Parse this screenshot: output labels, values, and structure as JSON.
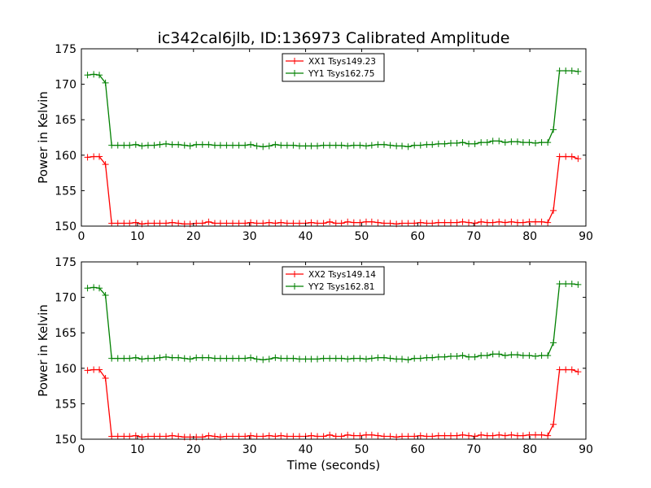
{
  "figure": {
    "title": "ic342cal6jlb, ID:136973 Calibrated Amplitude",
    "xlabel": "Time (seconds)"
  },
  "chart_data": [
    {
      "type": "line",
      "ylabel": "Power in Kelvin",
      "xlim": [
        0,
        90
      ],
      "ylim": [
        150,
        175
      ],
      "xticks": [
        0,
        10,
        20,
        30,
        40,
        50,
        60,
        70,
        80,
        90
      ],
      "yticks": [
        150,
        155,
        160,
        165,
        170,
        175
      ],
      "grid": false,
      "legend": "top-center",
      "series": [
        {
          "name": "XX1 Tsys149.23",
          "color": "#ff0000",
          "x": [
            1.1,
            2.2,
            3.2,
            4.3,
            5.4,
            6.5,
            7.6,
            8.6,
            9.7,
            10.8,
            11.9,
            13.0,
            14.0,
            15.1,
            16.2,
            17.3,
            18.4,
            19.4,
            20.5,
            21.6,
            22.7,
            23.8,
            24.8,
            25.9,
            27.0,
            28.1,
            29.2,
            30.2,
            31.3,
            32.4,
            33.5,
            34.6,
            35.6,
            36.7,
            37.8,
            38.9,
            40.0,
            41.0,
            42.1,
            43.2,
            44.3,
            45.4,
            46.4,
            47.5,
            48.6,
            49.7,
            50.8,
            51.8,
            52.9,
            54.0,
            55.1,
            56.2,
            57.2,
            58.3,
            59.4,
            60.5,
            61.6,
            62.6,
            63.7,
            64.8,
            65.9,
            67.0,
            68.0,
            69.1,
            70.2,
            71.3,
            72.4,
            73.4,
            74.5,
            75.6,
            76.7,
            77.8,
            78.8,
            79.9,
            81.0,
            82.1,
            83.2,
            84.2,
            85.3,
            86.4,
            87.5,
            88.6
          ],
          "y": [
            159.7,
            159.8,
            159.8,
            158.7,
            150.4,
            150.4,
            150.4,
            150.4,
            150.5,
            150.3,
            150.4,
            150.4,
            150.4,
            150.4,
            150.5,
            150.4,
            150.3,
            150.3,
            150.4,
            150.4,
            150.6,
            150.4,
            150.4,
            150.4,
            150.4,
            150.4,
            150.4,
            150.5,
            150.4,
            150.4,
            150.5,
            150.4,
            150.5,
            150.4,
            150.4,
            150.4,
            150.4,
            150.5,
            150.4,
            150.4,
            150.6,
            150.4,
            150.4,
            150.6,
            150.5,
            150.5,
            150.6,
            150.6,
            150.5,
            150.4,
            150.4,
            150.3,
            150.4,
            150.4,
            150.4,
            150.5,
            150.4,
            150.4,
            150.5,
            150.5,
            150.5,
            150.5,
            150.6,
            150.5,
            150.4,
            150.6,
            150.5,
            150.5,
            150.6,
            150.5,
            150.6,
            150.5,
            150.5,
            150.6,
            150.6,
            150.6,
            150.5,
            152.2,
            159.8,
            159.8,
            159.8,
            159.5
          ]
        },
        {
          "name": "YY1 Tsys162.75",
          "color": "#008000",
          "x": [
            1.1,
            2.2,
            3.2,
            4.3,
            5.4,
            6.5,
            7.6,
            8.6,
            9.7,
            10.8,
            11.9,
            13.0,
            14.0,
            15.1,
            16.2,
            17.3,
            18.4,
            19.4,
            20.5,
            21.6,
            22.7,
            23.8,
            24.8,
            25.9,
            27.0,
            28.1,
            29.2,
            30.2,
            31.3,
            32.4,
            33.5,
            34.6,
            35.6,
            36.7,
            37.8,
            38.9,
            40.0,
            41.0,
            42.1,
            43.2,
            44.3,
            45.4,
            46.4,
            47.5,
            48.6,
            49.7,
            50.8,
            51.8,
            52.9,
            54.0,
            55.1,
            56.2,
            57.2,
            58.3,
            59.4,
            60.5,
            61.6,
            62.6,
            63.7,
            64.8,
            65.9,
            67.0,
            68.0,
            69.1,
            70.2,
            71.3,
            72.4,
            73.4,
            74.5,
            75.6,
            76.7,
            77.8,
            78.8,
            79.9,
            81.0,
            82.1,
            83.2,
            84.2,
            85.3,
            86.4,
            87.5,
            88.6
          ],
          "y": [
            171.3,
            171.4,
            171.3,
            170.2,
            161.4,
            161.4,
            161.4,
            161.4,
            161.5,
            161.3,
            161.4,
            161.4,
            161.5,
            161.6,
            161.5,
            161.5,
            161.4,
            161.3,
            161.5,
            161.5,
            161.5,
            161.4,
            161.4,
            161.4,
            161.4,
            161.4,
            161.4,
            161.5,
            161.3,
            161.2,
            161.3,
            161.5,
            161.4,
            161.4,
            161.4,
            161.3,
            161.3,
            161.3,
            161.3,
            161.4,
            161.4,
            161.4,
            161.4,
            161.3,
            161.4,
            161.4,
            161.3,
            161.4,
            161.5,
            161.5,
            161.4,
            161.3,
            161.3,
            161.2,
            161.4,
            161.4,
            161.5,
            161.5,
            161.6,
            161.6,
            161.7,
            161.7,
            161.8,
            161.6,
            161.6,
            161.8,
            161.8,
            162.0,
            162.0,
            161.8,
            161.9,
            161.9,
            161.8,
            161.8,
            161.7,
            161.8,
            161.8,
            163.6,
            171.9,
            171.9,
            171.9,
            171.8
          ]
        }
      ]
    },
    {
      "type": "line",
      "ylabel": "Power in Kelvin",
      "xlim": [
        0,
        90
      ],
      "ylim": [
        150,
        175
      ],
      "xticks": [
        0,
        10,
        20,
        30,
        40,
        50,
        60,
        70,
        80,
        90
      ],
      "yticks": [
        150,
        155,
        160,
        165,
        170,
        175
      ],
      "grid": false,
      "legend": "top-center",
      "series": [
        {
          "name": "XX2 Tsys149.14",
          "color": "#ff0000",
          "x": [
            1.1,
            2.2,
            3.2,
            4.3,
            5.4,
            6.5,
            7.6,
            8.6,
            9.7,
            10.8,
            11.9,
            13.0,
            14.0,
            15.1,
            16.2,
            17.3,
            18.4,
            19.4,
            20.5,
            21.6,
            22.7,
            23.8,
            24.8,
            25.9,
            27.0,
            28.1,
            29.2,
            30.2,
            31.3,
            32.4,
            33.5,
            34.6,
            35.6,
            36.7,
            37.8,
            38.9,
            40.0,
            41.0,
            42.1,
            43.2,
            44.3,
            45.4,
            46.4,
            47.5,
            48.6,
            49.7,
            50.8,
            51.8,
            52.9,
            54.0,
            55.1,
            56.2,
            57.2,
            58.3,
            59.4,
            60.5,
            61.6,
            62.6,
            63.7,
            64.8,
            65.9,
            67.0,
            68.0,
            69.1,
            70.2,
            71.3,
            72.4,
            73.4,
            74.5,
            75.6,
            76.7,
            77.8,
            78.8,
            79.9,
            81.0,
            82.1,
            83.2,
            84.2,
            85.3,
            86.4,
            87.5,
            88.6
          ],
          "y": [
            159.7,
            159.8,
            159.8,
            158.6,
            150.4,
            150.4,
            150.4,
            150.4,
            150.5,
            150.3,
            150.4,
            150.4,
            150.4,
            150.4,
            150.5,
            150.4,
            150.3,
            150.3,
            150.3,
            150.3,
            150.5,
            150.4,
            150.3,
            150.4,
            150.4,
            150.4,
            150.4,
            150.5,
            150.4,
            150.4,
            150.5,
            150.4,
            150.5,
            150.4,
            150.4,
            150.4,
            150.4,
            150.5,
            150.4,
            150.4,
            150.6,
            150.4,
            150.4,
            150.6,
            150.5,
            150.5,
            150.6,
            150.6,
            150.5,
            150.4,
            150.4,
            150.3,
            150.4,
            150.4,
            150.4,
            150.5,
            150.4,
            150.4,
            150.5,
            150.5,
            150.5,
            150.5,
            150.6,
            150.5,
            150.4,
            150.6,
            150.5,
            150.5,
            150.6,
            150.5,
            150.6,
            150.5,
            150.5,
            150.6,
            150.6,
            150.6,
            150.5,
            152.1,
            159.8,
            159.8,
            159.8,
            159.5
          ]
        },
        {
          "name": "YY2 Tsys162.81",
          "color": "#008000",
          "x": [
            1.1,
            2.2,
            3.2,
            4.3,
            5.4,
            6.5,
            7.6,
            8.6,
            9.7,
            10.8,
            11.9,
            13.0,
            14.0,
            15.1,
            16.2,
            17.3,
            18.4,
            19.4,
            20.5,
            21.6,
            22.7,
            23.8,
            24.8,
            25.9,
            27.0,
            28.1,
            29.2,
            30.2,
            31.3,
            32.4,
            33.5,
            34.6,
            35.6,
            36.7,
            37.8,
            38.9,
            40.0,
            41.0,
            42.1,
            43.2,
            44.3,
            45.4,
            46.4,
            47.5,
            48.6,
            49.7,
            50.8,
            51.8,
            52.9,
            54.0,
            55.1,
            56.2,
            57.2,
            58.3,
            59.4,
            60.5,
            61.6,
            62.6,
            63.7,
            64.8,
            65.9,
            67.0,
            68.0,
            69.1,
            70.2,
            71.3,
            72.4,
            73.4,
            74.5,
            75.6,
            76.7,
            77.8,
            78.8,
            79.9,
            81.0,
            82.1,
            83.2,
            84.2,
            85.3,
            86.4,
            87.5,
            88.6
          ],
          "y": [
            171.3,
            171.4,
            171.3,
            170.3,
            161.4,
            161.4,
            161.4,
            161.4,
            161.5,
            161.3,
            161.4,
            161.4,
            161.5,
            161.6,
            161.5,
            161.5,
            161.4,
            161.3,
            161.5,
            161.5,
            161.5,
            161.4,
            161.4,
            161.4,
            161.4,
            161.4,
            161.4,
            161.5,
            161.3,
            161.2,
            161.3,
            161.5,
            161.4,
            161.4,
            161.4,
            161.3,
            161.3,
            161.3,
            161.3,
            161.4,
            161.4,
            161.4,
            161.4,
            161.3,
            161.4,
            161.4,
            161.3,
            161.4,
            161.5,
            161.5,
            161.4,
            161.3,
            161.3,
            161.2,
            161.4,
            161.4,
            161.5,
            161.5,
            161.6,
            161.6,
            161.7,
            161.7,
            161.8,
            161.6,
            161.6,
            161.8,
            161.8,
            162.0,
            162.0,
            161.8,
            161.9,
            161.9,
            161.8,
            161.8,
            161.7,
            161.8,
            161.8,
            163.6,
            171.9,
            171.9,
            171.9,
            171.8
          ]
        }
      ]
    }
  ]
}
